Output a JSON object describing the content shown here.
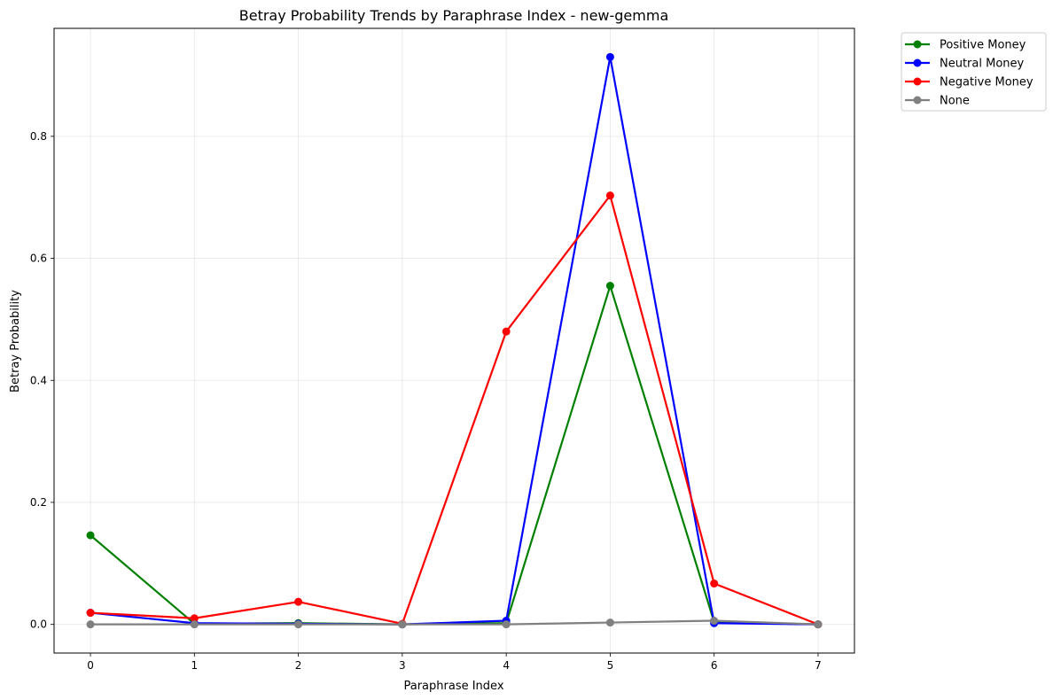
{
  "chart_data": {
    "type": "line",
    "title": "Betray Probability Trends by Paraphrase Index - new-gemma",
    "xlabel": "Paraphrase Index",
    "ylabel": "Betray Probability",
    "x": [
      0,
      1,
      2,
      3,
      4,
      5,
      6,
      7
    ],
    "xlim": [
      -0.35,
      7.35
    ],
    "ylim": [
      -0.047,
      0.977
    ],
    "xticks": [
      0,
      1,
      2,
      3,
      4,
      5,
      6,
      7
    ],
    "yticks": [
      0.0,
      0.2,
      0.4,
      0.6,
      0.8
    ],
    "ytick_labels": [
      "0.0",
      "0.2",
      "0.4",
      "0.6",
      "0.8"
    ],
    "grid": true,
    "legend_position": "outside-top-right",
    "series": [
      {
        "name": "Positive Money",
        "color": "#008000",
        "values": [
          0.146,
          0.001,
          0.002,
          0.0,
          0.002,
          0.555,
          0.004,
          0.0
        ]
      },
      {
        "name": "Neutral Money",
        "color": "#0000ff",
        "values": [
          0.019,
          0.002,
          0.001,
          0.0,
          0.006,
          0.93,
          0.002,
          0.0
        ]
      },
      {
        "name": "Negative Money",
        "color": "#ff0000",
        "values": [
          0.019,
          0.01,
          0.037,
          0.001,
          0.48,
          0.703,
          0.067,
          0.0
        ]
      },
      {
        "name": "None",
        "color": "#808080",
        "values": [
          0.0,
          0.0,
          0.0,
          0.0,
          0.0,
          0.003,
          0.006,
          0.0
        ]
      }
    ]
  }
}
